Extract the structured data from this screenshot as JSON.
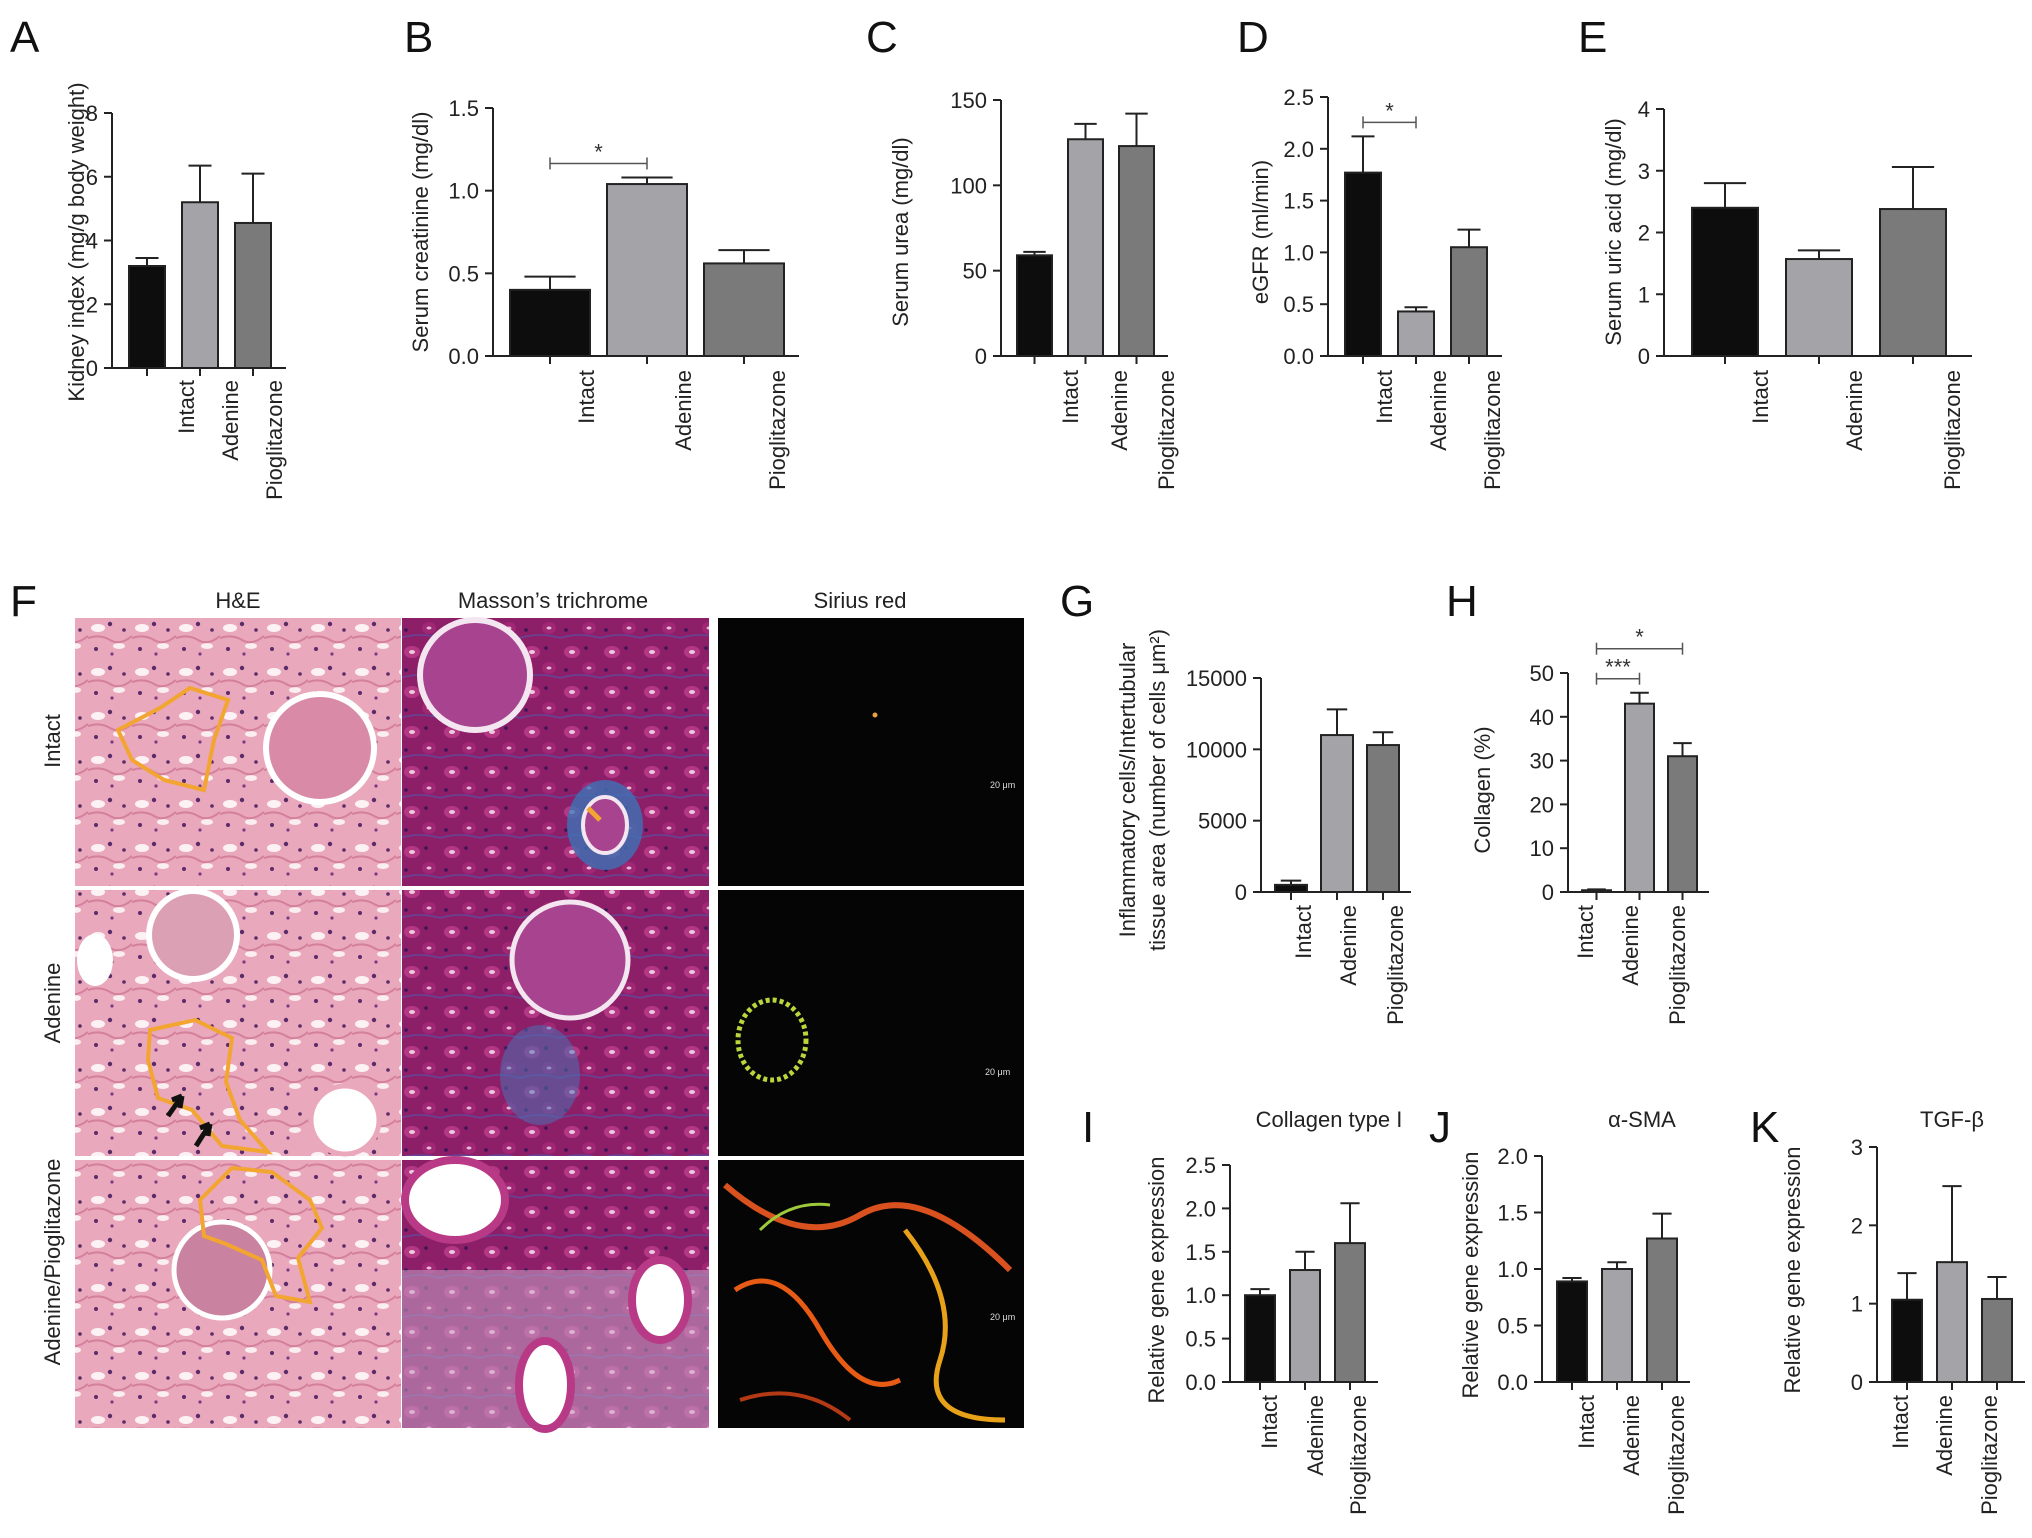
{
  "panel_F": {
    "label": "F",
    "column_headers": [
      "H&E",
      "Masson’s trichrome",
      "Sirius red"
    ],
    "row_labels": [
      "Intact",
      "Adenine",
      "Adenine/Pioglitazone"
    ],
    "scale_bar_text": "20 μm"
  },
  "colors": {
    "intact": "#0d0d0d",
    "adenine": "#a4a4a8",
    "pioglitazone": "#7a7a7a",
    "he_pink": "#e9a8bb",
    "masson_purple": "#8c1f68",
    "sirius_dark": "#050505",
    "outline_orange": "#f2a531"
  },
  "chart_data": [
    {
      "panel": "A",
      "type": "bar",
      "categories": [
        "Intact",
        "Adenine",
        "Pioglitazone"
      ],
      "values": [
        3.2,
        5.2,
        4.55
      ],
      "errors": [
        0.25,
        1.15,
        1.55
      ],
      "ylabel": "Kidney index (mg/g body weight)",
      "ylim": [
        0,
        8
      ],
      "yticks": [
        "0",
        "2",
        "4",
        "6",
        "8"
      ],
      "grid": false
    },
    {
      "panel": "B",
      "type": "bar",
      "categories": [
        "Intact",
        "Adenine",
        "Pioglitazone"
      ],
      "values": [
        0.4,
        1.04,
        0.56
      ],
      "errors": [
        0.08,
        0.04,
        0.08
      ],
      "ylabel": "Serum creatinine (mg/dl)",
      "ylim": [
        0,
        1.5
      ],
      "yticks": [
        "0.0",
        "0.5",
        "1.0",
        "1.5"
      ],
      "significance": [
        {
          "from": "Intact",
          "to": "Adenine",
          "label": "*"
        }
      ],
      "grid": false
    },
    {
      "panel": "C",
      "type": "bar",
      "categories": [
        "Intact",
        "Adenine",
        "Pioglitazone"
      ],
      "values": [
        59,
        127,
        123
      ],
      "errors": [
        2,
        9,
        19
      ],
      "ylabel": "Serum urea (mg/dl)",
      "ylim": [
        0,
        150
      ],
      "yticks": [
        "0",
        "50",
        "100",
        "150"
      ],
      "grid": false
    },
    {
      "panel": "D",
      "type": "bar",
      "categories": [
        "Intact",
        "Adenine",
        "Pioglitazone"
      ],
      "values": [
        1.77,
        0.43,
        1.05
      ],
      "errors": [
        0.35,
        0.04,
        0.17
      ],
      "ylabel": "eGFR (ml/min)",
      "ylim": [
        0,
        2.5
      ],
      "yticks": [
        "0.0",
        "0.5",
        "1.0",
        "1.5",
        "2.0",
        "2.5"
      ],
      "significance": [
        {
          "from": "Intact",
          "to": "Adenine",
          "label": "*"
        }
      ],
      "grid": false
    },
    {
      "panel": "E",
      "type": "bar",
      "categories": [
        "Intact",
        "Adenine",
        "Pioglitazone"
      ],
      "values": [
        2.4,
        1.57,
        2.38
      ],
      "errors": [
        0.4,
        0.14,
        0.68
      ],
      "ylabel": "Serum uric acid (mg/dl)",
      "ylim": [
        0,
        4
      ],
      "yticks": [
        "0",
        "1",
        "2",
        "3",
        "4"
      ],
      "grid": false
    },
    {
      "panel": "G",
      "type": "bar",
      "categories": [
        "Intact",
        "Adenine",
        "Pioglitazone"
      ],
      "values": [
        500,
        11000,
        10300
      ],
      "errors": [
        300,
        1800,
        900
      ],
      "ylabel": "Inflammatory cells/Intertubular tissue area (number of cells μm²)",
      "ylabel_lines": [
        "Inflammatory cells/Intertubular",
        "tissue area (number of cells μm²)"
      ],
      "ylim": [
        0,
        15000
      ],
      "yticks": [
        "0",
        "5000",
        "10000",
        "15000"
      ],
      "grid": false
    },
    {
      "panel": "H",
      "type": "bar",
      "categories": [
        "Intact",
        "Adenine",
        "Pioglitazone"
      ],
      "values": [
        0.4,
        43,
        31
      ],
      "errors": [
        0.2,
        2.5,
        3
      ],
      "ylabel": "Collagen (%)",
      "ylim": [
        0,
        50
      ],
      "yticks": [
        "0",
        "10",
        "20",
        "30",
        "40",
        "50"
      ],
      "significance": [
        {
          "from": "Intact",
          "to": "Adenine",
          "label": "***"
        },
        {
          "from": "Intact",
          "to": "Pioglitazone",
          "label": "*"
        }
      ],
      "grid": false
    },
    {
      "panel": "I",
      "type": "bar",
      "title": "Collagen type I",
      "categories": [
        "Intact",
        "Adenine",
        "Pioglitazone"
      ],
      "values": [
        1.0,
        1.29,
        1.6
      ],
      "errors": [
        0.07,
        0.21,
        0.46
      ],
      "ylabel": "Relative gene expression",
      "ylim": [
        0,
        2.5
      ],
      "yticks": [
        "0.0",
        "0.5",
        "1.0",
        "1.5",
        "2.0",
        "2.5"
      ],
      "grid": false
    },
    {
      "panel": "J",
      "type": "bar",
      "title": "α-SMA",
      "categories": [
        "Intact",
        "Adenine",
        "Pioglitazone"
      ],
      "values": [
        0.89,
        1.0,
        1.27
      ],
      "errors": [
        0.03,
        0.06,
        0.22
      ],
      "ylabel": "Relative gene expression",
      "ylim": [
        0,
        2.0
      ],
      "yticks": [
        "0.0",
        "0.5",
        "1.0",
        "1.5",
        "2.0"
      ],
      "grid": false
    },
    {
      "panel": "K",
      "type": "bar",
      "title": "TGF-β",
      "categories": [
        "Intact",
        "Adenine",
        "Pioglitazone"
      ],
      "values": [
        1.05,
        1.53,
        1.06
      ],
      "errors": [
        0.34,
        0.97,
        0.28
      ],
      "ylabel": "Relative gene expression",
      "ylim": [
        0,
        3
      ],
      "yticks": [
        "0",
        "1",
        "2",
        "3"
      ],
      "grid": false
    }
  ]
}
